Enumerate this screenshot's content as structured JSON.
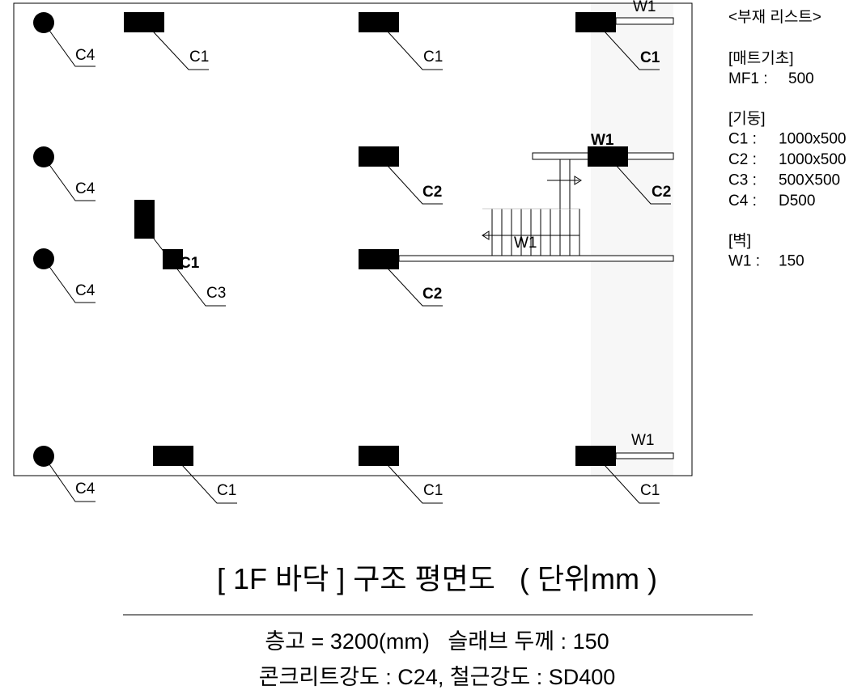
{
  "plan": {
    "labels": [
      "C4",
      "C4",
      "C4",
      "C4",
      "C1",
      "C1",
      "C1",
      "C2",
      "C2",
      "C1",
      "C3",
      "C2",
      "C1",
      "C1",
      "C1",
      "W1",
      "W1",
      "W1",
      "W1"
    ]
  },
  "legend": {
    "title": "<부재 리스트>",
    "groups": [
      {
        "heading": "[매트기초]",
        "items": [
          [
            "MF1 :",
            "500"
          ]
        ]
      },
      {
        "heading": "[기둥]",
        "items": [
          [
            "C1 :",
            "1000x500"
          ],
          [
            "C2 :",
            "1000x500"
          ],
          [
            "C3 :",
            "500X500"
          ],
          [
            "C4 :",
            "D500"
          ]
        ]
      },
      {
        "heading": "[벽]",
        "items": [
          [
            "W1 :",
            "150"
          ]
        ]
      }
    ]
  },
  "title": "[ 1F 바닥 ] 구조 평면도   ( 단위mm )",
  "notes": [
    "층고 = 3200(mm)   슬래브 두께 : 150",
    "콘크리트강도 : C24, 철근강도 : SD400"
  ]
}
